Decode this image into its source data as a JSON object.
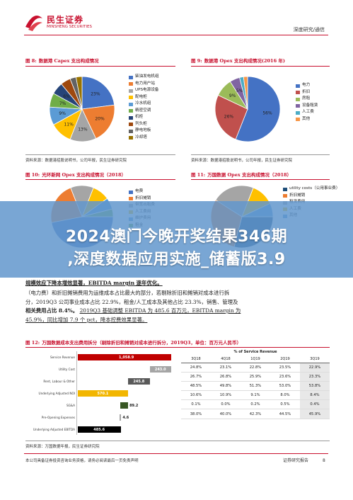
{
  "header": {
    "logo_cn": "民生证券",
    "logo_en": "MINSHENG SECURITIES",
    "report_type": "深度研究/通信"
  },
  "figures": {
    "fig8": {
      "num": "图 8:",
      "title": "数据港 Capex 支出构成情况",
      "source": "资料来源：数据港招股说明书，公司年报，民生证券研究院",
      "legend": [
        "柴油发电机组",
        "电力用户站",
        "UPS电源设备",
        "配电柜",
        "冷水机组",
        "精密空调",
        "机柜",
        "列头柜",
        "静电地板",
        "冷却塔"
      ],
      "colors": [
        "#4472c4",
        "#ed7d31",
        "#a5a5a5",
        "#ffc000",
        "#5b9bd5",
        "#70ad47",
        "#264478",
        "#9e480e",
        "#636363",
        "#997300"
      ],
      "labels": [
        "23%",
        "20%",
        "13%",
        "11%",
        "9%",
        "7%",
        "6%"
      ]
    },
    "fig9": {
      "num": "图 9:",
      "title": "数据港 Opex 支出构成情况(2016 年)",
      "source": "资料来源：数据港招股说明书，公司年报，民生证券研究院",
      "legend": [
        "电力",
        "折旧",
        "房租",
        "设备租赁",
        "人工费",
        "其他"
      ],
      "colors": [
        "#4472c4",
        "#c0504d",
        "#9bbb59",
        "#8064a2",
        "#4bacc6",
        "#f79646"
      ],
      "labels": [
        "56%",
        "26%",
        "9%",
        "5%"
      ]
    },
    "fig10": {
      "num": "图 10:",
      "title": "光环新网 Opex 支出构成情况（2018）",
      "legend": [
        "电费",
        "折旧摊销",
        "带宽出租费",
        "人工费用",
        "维护费用",
        "租金"
      ],
      "colors": [
        "#4472c4",
        "#ed7d31",
        "#a5a5a5",
        "#ffc000",
        "#5b9bd5",
        "#70ad47"
      ],
      "labels": [
        "47%"
      ]
    },
    "fig11": {
      "num": "图 11:",
      "title": "万国数据 Opex 支出构成情况（2018）",
      "legend": [
        "utility costs（公用事业费）",
        "折旧摊销",
        "租赁费用",
        "人工费",
        "其他"
      ],
      "colors": [
        "#1f4e79",
        "#ed7d31",
        "#a5a5a5",
        "#ffc000",
        "#5b9bd5"
      ],
      "labels": [
        "29%"
      ]
    },
    "fig12": {
      "num": "图 12:",
      "title": "万国数据成本支出费用拆分（剔除折旧和摊销对成本进行拆分，2019Q3，单位：百万元人民币）",
      "source": "资料来源：万国数据年报，民生证券研究院"
    }
  },
  "banner": {
    "line1": "2024澳门今晚开奖结果346期",
    "line2": ",深度数据应用实施_储蓄版3.9"
  },
  "body_text": {
    "line_a": "规模效应下降本增效显著，EBITDA margin 逐年优化。",
    "line1": "（电力费）和折旧摊销费用为运维成本占比最大的部分，若剔除折旧和摊销对成本进行拆",
    "line2": "分，2019Q3 公司事业成本占比 22.9%，租金/人工成本及其他占比 23.3%，销售、管理及",
    "line3a": "相关费用占比 8.4%。",
    "line3b": "2019Q3 基础调整 EBITDA 为 485.6 百万元，EBITDA margin 为",
    "line4": "45.9%，同比增加 7.9 个 pct，降本控费效果显著。"
  },
  "waterfall": {
    "items": [
      {
        "label": "Service Revenue",
        "value": "1,058.9",
        "color": "#c00000"
      },
      {
        "label": "Utility Cost",
        "value": "243.0",
        "color": "#a5a5a5"
      },
      {
        "label": "Rent, Labour & Other",
        "value": "245.8",
        "color": "#595959"
      },
      {
        "label": "Underlying Adjusted NOI",
        "value": "570.1",
        "color": "#f2b600"
      },
      {
        "label": "SG&A",
        "value": "89.2",
        "color": "#375623"
      },
      {
        "label": "Pre-Opening Expenses",
        "value": "4.6",
        "color": "#a5a5a5"
      },
      {
        "label": "Underlying Adjusted EBITDA",
        "value": "485.6",
        "color": "#000000"
      }
    ]
  },
  "table": {
    "header": "% of Service Revenue",
    "columns": [
      "3Q18",
      "4Q18",
      "1Q19",
      "2Q19",
      "3Q19"
    ],
    "rows": [
      [
        "24.8%",
        "23.1%",
        "22.8%",
        "23.5%",
        "22.9%"
      ],
      [
        "26.7%",
        "26.8%",
        "25.9%",
        "23.6%",
        "23.3%"
      ],
      [
        "48.5%",
        "49.8%",
        "51.3%",
        "53.0%",
        "53.8%"
      ],
      [
        "10.6%",
        "10.9%",
        "9.1%",
        "8.0%",
        "8.4%"
      ],
      [
        "0.1%",
        "0.0%",
        "0.2%",
        "0.5%",
        "0.4%"
      ],
      [
        "38.0%",
        "40.0%",
        "42.3%",
        "44.5%",
        "45.9%"
      ]
    ]
  },
  "footer": {
    "disclaimer": "本公司具备证券投资咨询业务资格，请务必阅读最后一页免责声明",
    "right": "证券研究报告",
    "page": "8"
  }
}
